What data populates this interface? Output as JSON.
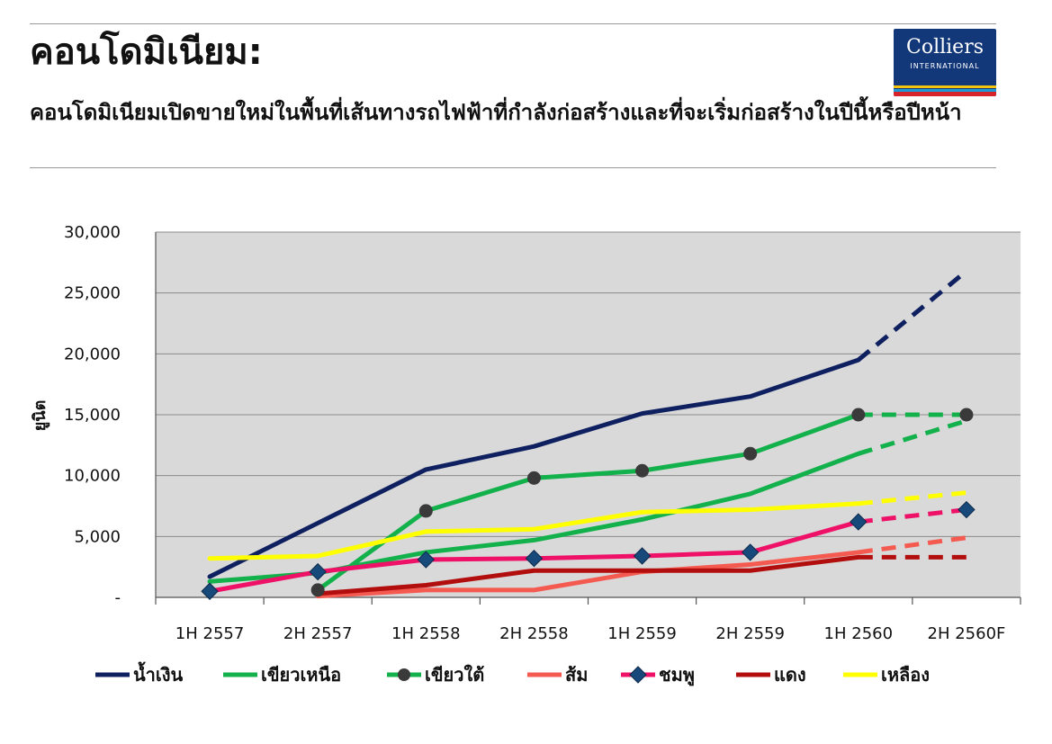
{
  "header": {
    "title": "คอนโดมิเนียม:",
    "subtitle": "คอนโดมิเนียมเปิดขายใหม่ในพื้นที่เส้นทางรถไฟฟ้าที่กำลังก่อสร้างและที่จะเริ่มก่อสร้างในปีนี้หรือปีหน้า"
  },
  "logo": {
    "brand": "Colliers",
    "sub": "INTERNATIONAL"
  },
  "chart_data": {
    "type": "line",
    "ylabel": "ยูนิต",
    "ylim": [
      0,
      30000
    ],
    "grid": true,
    "legend_position": "bottom",
    "y_ticks": [
      "-",
      "5,000",
      "10,000",
      "15,000",
      "20,000",
      "25,000",
      "30,000"
    ],
    "categories": [
      "1H 2557",
      "2H 2557",
      "1H 2558",
      "2H 2558",
      "1H 2559",
      "2H 2559",
      "1H 2560",
      "2H 2560F"
    ],
    "series": [
      {
        "name": "น้ำเงิน",
        "color": "#0f2060",
        "marker": "none",
        "values": [
          1700,
          6100,
          10500,
          12400,
          15100,
          16500,
          19500,
          26800
        ]
      },
      {
        "name": "เขียวเหนือ",
        "color": "#12b14b",
        "marker": "none",
        "values": [
          1300,
          2000,
          3700,
          4700,
          6400,
          8500,
          11800,
          14500
        ]
      },
      {
        "name": "เขียวใต้",
        "color": "#12b14b",
        "marker": "circle",
        "values": [
          null,
          600,
          7100,
          9800,
          10400,
          11800,
          15000,
          15000
        ]
      },
      {
        "name": "ส้ม",
        "color": "#f45a50",
        "marker": "none",
        "values": [
          null,
          100,
          600,
          600,
          2100,
          2700,
          3700,
          4900
        ]
      },
      {
        "name": "ชมพู",
        "color": "#ee1167",
        "marker": "diamond",
        "values": [
          500,
          2100,
          3100,
          3200,
          3400,
          3700,
          6200,
          7200
        ]
      },
      {
        "name": "แดง",
        "color": "#b30e0e",
        "marker": "none",
        "values": [
          null,
          300,
          1000,
          2200,
          2200,
          2200,
          3300,
          3300
        ]
      },
      {
        "name": "เหลือง",
        "color": "#ffff00",
        "marker": "none",
        "values": [
          3200,
          3400,
          5400,
          5600,
          7000,
          7200,
          7700,
          8600
        ]
      }
    ]
  }
}
